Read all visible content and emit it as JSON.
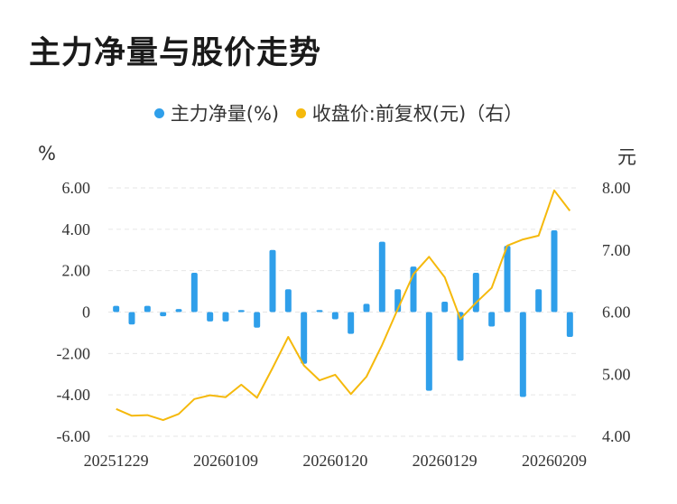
{
  "title": "主力净量与股价走势",
  "legend": [
    {
      "label": "主力净量(%)",
      "color": "#2f9fea"
    },
    {
      "label": "收盘价:前复权(元)（右）",
      "color": "#f5b90c"
    }
  ],
  "left_unit": "%",
  "right_unit": "元",
  "chart_data": {
    "type": "bar+line",
    "x_tick_labels": [
      "20251229",
      "20260109",
      "20260120",
      "20260129",
      "20260209"
    ],
    "x_tick_indices": [
      0,
      7,
      14,
      21,
      28
    ],
    "left_axis": {
      "min": -6,
      "max": 6,
      "ticks": [
        "6.00",
        "4.00",
        "2.00",
        "0",
        "-2.00",
        "-4.00",
        "-6.00"
      ]
    },
    "right_axis": {
      "min": 4,
      "max": 8,
      "ticks": [
        "8.00",
        "7.00",
        "6.00",
        "5.00",
        "4.00"
      ]
    },
    "bar_series": {
      "name": "主力净量(%)",
      "color": "#2f9fea",
      "values": [
        0.3,
        -0.6,
        0.3,
        -0.2,
        0.15,
        1.9,
        -0.45,
        -0.45,
        0.1,
        -0.75,
        3.0,
        1.1,
        -2.5,
        0.1,
        -0.35,
        -1.05,
        0.4,
        3.4,
        1.1,
        2.2,
        -3.8,
        0.5,
        -2.35,
        1.9,
        -0.7,
        3.2,
        -4.1,
        1.1,
        3.95,
        -1.2
      ]
    },
    "line_series": {
      "name": "收盘价:前复权(元)（右）",
      "color": "#f5b90c",
      "values": [
        4.44,
        4.33,
        4.34,
        4.26,
        4.36,
        4.6,
        4.66,
        4.63,
        4.83,
        4.62,
        5.1,
        5.6,
        5.14,
        4.9,
        4.99,
        4.68,
        4.96,
        5.47,
        6.05,
        6.61,
        6.89,
        6.56,
        5.89,
        6.15,
        6.39,
        7.07,
        7.17,
        7.23,
        7.96,
        7.63
      ]
    }
  }
}
